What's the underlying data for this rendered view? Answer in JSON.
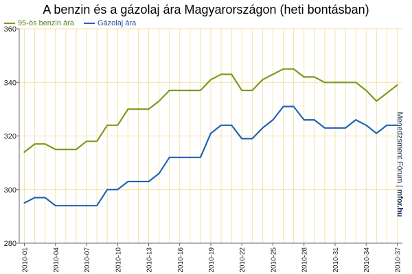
{
  "chart_data": {
    "type": "line",
    "title": "A benzin és a gázolaj ára Magyarországon (heti bontásban)",
    "xlabel": "",
    "ylabel": "",
    "ylim": [
      280,
      360
    ],
    "yticks": [
      280,
      300,
      320,
      340,
      360
    ],
    "grid": true,
    "legend": "top-left",
    "x": [
      "2010-01",
      "2010-02",
      "2010-03",
      "2010-04",
      "2010-05",
      "2010-06",
      "2010-07",
      "2010-08",
      "2010-09",
      "2010-10",
      "2010-11",
      "2010-12",
      "2010-13",
      "2010-14",
      "2010-15",
      "2010-16",
      "2010-17",
      "2010-18",
      "2010-19",
      "2010-20",
      "2010-21",
      "2010-22",
      "2010-23",
      "2010-24",
      "2010-25",
      "2010-26",
      "2010-27",
      "2010-28",
      "2010-29",
      "2010-30",
      "2010-31",
      "2010-32",
      "2010-33",
      "2010-34",
      "2010-35",
      "2010-36",
      "2010-37"
    ],
    "xticks_shown": [
      "2010-01",
      "2010-04",
      "2010-07",
      "2010-10",
      "2010-13",
      "2010-16",
      "2010-19",
      "2010-22",
      "2010-25",
      "2010-28",
      "2010-31",
      "2010-34",
      "2010-37"
    ],
    "series": [
      {
        "name": "95-ös benzin ára",
        "color": "#7a9a1f",
        "values": [
          314,
          317,
          317,
          315,
          315,
          315,
          318,
          318,
          324,
          324,
          330,
          330,
          330,
          333,
          337,
          337,
          337,
          337,
          341,
          343,
          343,
          337,
          337,
          341,
          343,
          345,
          345,
          342,
          342,
          340,
          340,
          340,
          340,
          337,
          333,
          336,
          339
        ]
      },
      {
        "name": "Gázolaj ára",
        "color": "#1f64b4",
        "values": [
          295,
          297,
          297,
          294,
          294,
          294,
          294,
          294,
          300,
          300,
          303,
          303,
          303,
          306,
          312,
          312,
          312,
          312,
          321,
          324,
          324,
          319,
          319,
          323,
          326,
          331,
          331,
          326,
          326,
          323,
          323,
          323,
          326,
          324,
          321,
          324,
          324
        ]
      }
    ]
  },
  "watermark": {
    "text": "Menedzsment Fórum  |  ",
    "brand": "mfor.hu"
  }
}
